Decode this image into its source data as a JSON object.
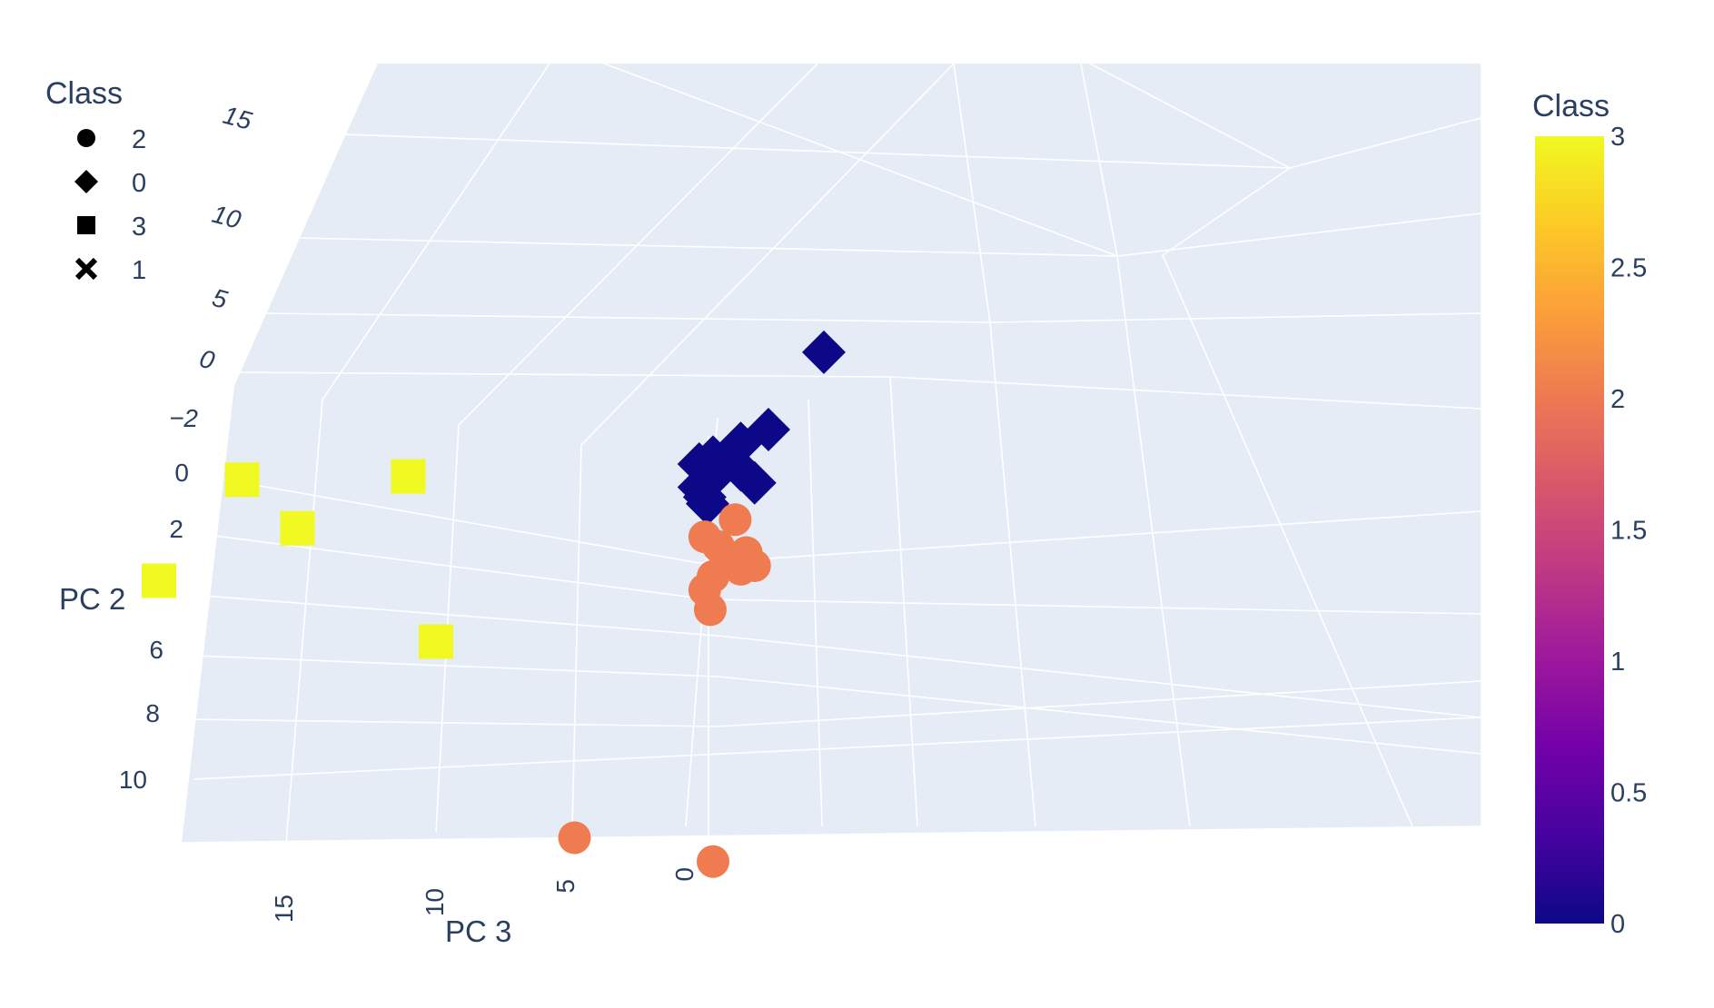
{
  "chart_data": {
    "type": "scatter",
    "subtype": "scatter3d",
    "axes": {
      "x": {
        "label": "",
        "ticks": []
      },
      "y": {
        "label": "PC 2",
        "ticks": [
          "−2",
          "0",
          "2",
          "4",
          "6",
          "8",
          "10"
        ]
      },
      "z_back": {
        "ticks": [
          "0",
          "5",
          "10",
          "15"
        ]
      },
      "z": {
        "label": "PC 3",
        "ticks": [
          "15",
          "10",
          "5",
          "0"
        ]
      }
    },
    "grid": true,
    "legend": {
      "title": "Class",
      "placement": "top-left",
      "items": [
        {
          "label": "2",
          "symbol": "circle"
        },
        {
          "label": "0",
          "symbol": "diamond"
        },
        {
          "label": "3",
          "symbol": "square"
        },
        {
          "label": "1",
          "symbol": "x"
        }
      ]
    },
    "colorbar": {
      "title": "Class",
      "range": [
        0,
        3
      ],
      "ticks": [
        "3",
        "2.5",
        "2",
        "1.5",
        "1",
        "0.5",
        "0"
      ],
      "colorscale": "plasma"
    },
    "series": [
      {
        "name": "3",
        "symbol": "square",
        "color": "#f0f921",
        "points": [
          {
            "pc2": 0.0,
            "pc3": 17.0
          },
          {
            "pc2": 0.0,
            "pc3": 11.0
          },
          {
            "pc2": 1.5,
            "pc3": 15.0
          },
          {
            "pc2": 3.0,
            "pc3": 20.0
          },
          {
            "pc2": 5.0,
            "pc3": 10.0
          }
        ]
      },
      {
        "name": "0",
        "symbol": "diamond",
        "color": "#0d0887",
        "points": [
          {
            "pc2": -3.5,
            "pc3": -4.0
          },
          {
            "pc2": -1.2,
            "pc3": -2.0
          },
          {
            "pc2": -0.8,
            "pc3": -1.0
          },
          {
            "pc2": -0.4,
            "pc3": 0.0
          },
          {
            "pc2": -0.2,
            "pc3": 0.5
          },
          {
            "pc2": 0.0,
            "pc3": -1.0
          },
          {
            "pc2": 0.2,
            "pc3": 0.0
          },
          {
            "pc2": 0.5,
            "pc3": 0.5
          },
          {
            "pc2": 0.8,
            "pc3": 0.3
          },
          {
            "pc2": 0.4,
            "pc3": -1.5
          },
          {
            "pc2": 1.0,
            "pc3": 0.2
          }
        ]
      },
      {
        "name": "2",
        "symbol": "circle",
        "color": "#ef7b51",
        "points": [
          {
            "pc2": 1.5,
            "pc3": -0.8
          },
          {
            "pc2": 2.0,
            "pc3": 0.3
          },
          {
            "pc2": 2.3,
            "pc3": -0.2
          },
          {
            "pc2": 2.6,
            "pc3": -0.5
          },
          {
            "pc2": 2.9,
            "pc3": -1.5
          },
          {
            "pc2": 3.2,
            "pc3": 0.0
          },
          {
            "pc2": 3.6,
            "pc3": 0.3
          },
          {
            "pc2": 4.2,
            "pc3": 0.1
          },
          {
            "pc2": 3.0,
            "pc3": -1.0
          },
          {
            "pc2": 2.5,
            "pc3": -1.2
          },
          {
            "pc2": 11.0,
            "pc3": 5.0
          },
          {
            "pc2": 11.8,
            "pc3": 0.0
          }
        ]
      }
    ]
  }
}
